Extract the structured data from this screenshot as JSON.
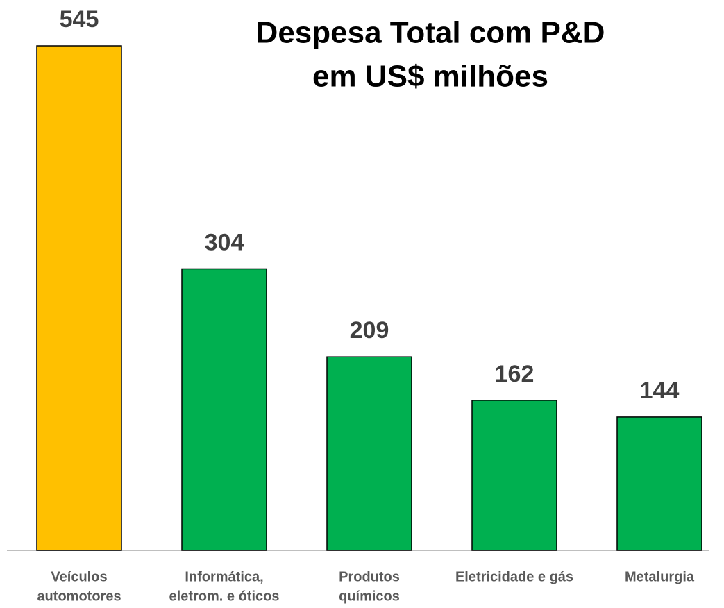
{
  "chart_data": {
    "type": "bar",
    "title": [
      "Despesa Total com P&D",
      "em US$ milhões"
    ],
    "categories": [
      [
        "Veículos",
        "automotores"
      ],
      [
        "Informática,",
        "eletrom. e óticos"
      ],
      [
        "Produtos",
        "químicos"
      ],
      [
        "Eletricidade e gás"
      ],
      [
        "Metalurgia"
      ]
    ],
    "values": [
      545,
      304,
      209,
      162,
      144
    ],
    "colors": [
      "#FFC000",
      "#00B050",
      "#00B050",
      "#00B050",
      "#00B050"
    ],
    "ylim": [
      0,
      545
    ]
  }
}
